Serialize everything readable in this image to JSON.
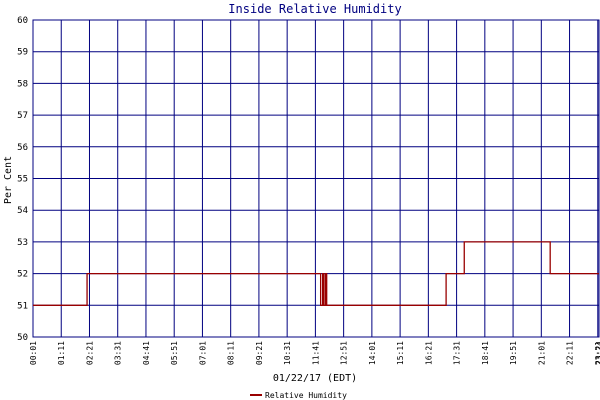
{
  "chart_data": {
    "type": "line",
    "title": "Inside Relative Humidity",
    "x_label": "01/22/17 (EDT)",
    "y_label": "Per Cent",
    "x": [
      1,
      135,
      135,
      714,
      714,
      719,
      719,
      722,
      722,
      726,
      726,
      729,
      729,
      1025,
      1025,
      1070,
      1070,
      1283,
      1283,
      1404
    ],
    "series": [
      {
        "name": "Relative Humidity",
        "color": "#990000",
        "values": [
          51,
          51,
          52,
          52,
          51,
          51,
          52,
          52,
          51,
          51,
          52,
          52,
          51,
          51,
          52,
          52,
          53,
          53,
          52,
          52
        ]
      }
    ],
    "xlim": [
      1,
      1404
    ],
    "xticks": [
      {
        "value": 1,
        "label": "00:01"
      },
      {
        "value": 71,
        "label": "01:11"
      },
      {
        "value": 141,
        "label": "02:21"
      },
      {
        "value": 211,
        "label": "03:31"
      },
      {
        "value": 281,
        "label": "04:41"
      },
      {
        "value": 351,
        "label": "05:51"
      },
      {
        "value": 421,
        "label": "07:01"
      },
      {
        "value": 491,
        "label": "08:11"
      },
      {
        "value": 561,
        "label": "09:21"
      },
      {
        "value": 631,
        "label": "10:31"
      },
      {
        "value": 701,
        "label": "11:41"
      },
      {
        "value": 771,
        "label": "12:51"
      },
      {
        "value": 841,
        "label": "14:01"
      },
      {
        "value": 911,
        "label": "15:11"
      },
      {
        "value": 981,
        "label": "16:21"
      },
      {
        "value": 1051,
        "label": "17:31"
      },
      {
        "value": 1121,
        "label": "18:41"
      },
      {
        "value": 1191,
        "label": "19:51"
      },
      {
        "value": 1261,
        "label": "21:01"
      },
      {
        "value": 1331,
        "label": "22:11"
      },
      {
        "value": 1401,
        "label": "23:21"
      },
      {
        "value": 1404,
        "label": "23:24"
      }
    ],
    "ylim": [
      50,
      60
    ],
    "yticks": [
      50,
      51,
      52,
      53,
      54,
      55,
      56,
      57,
      58,
      59,
      60
    ],
    "grid": true,
    "legend": "bottom"
  }
}
